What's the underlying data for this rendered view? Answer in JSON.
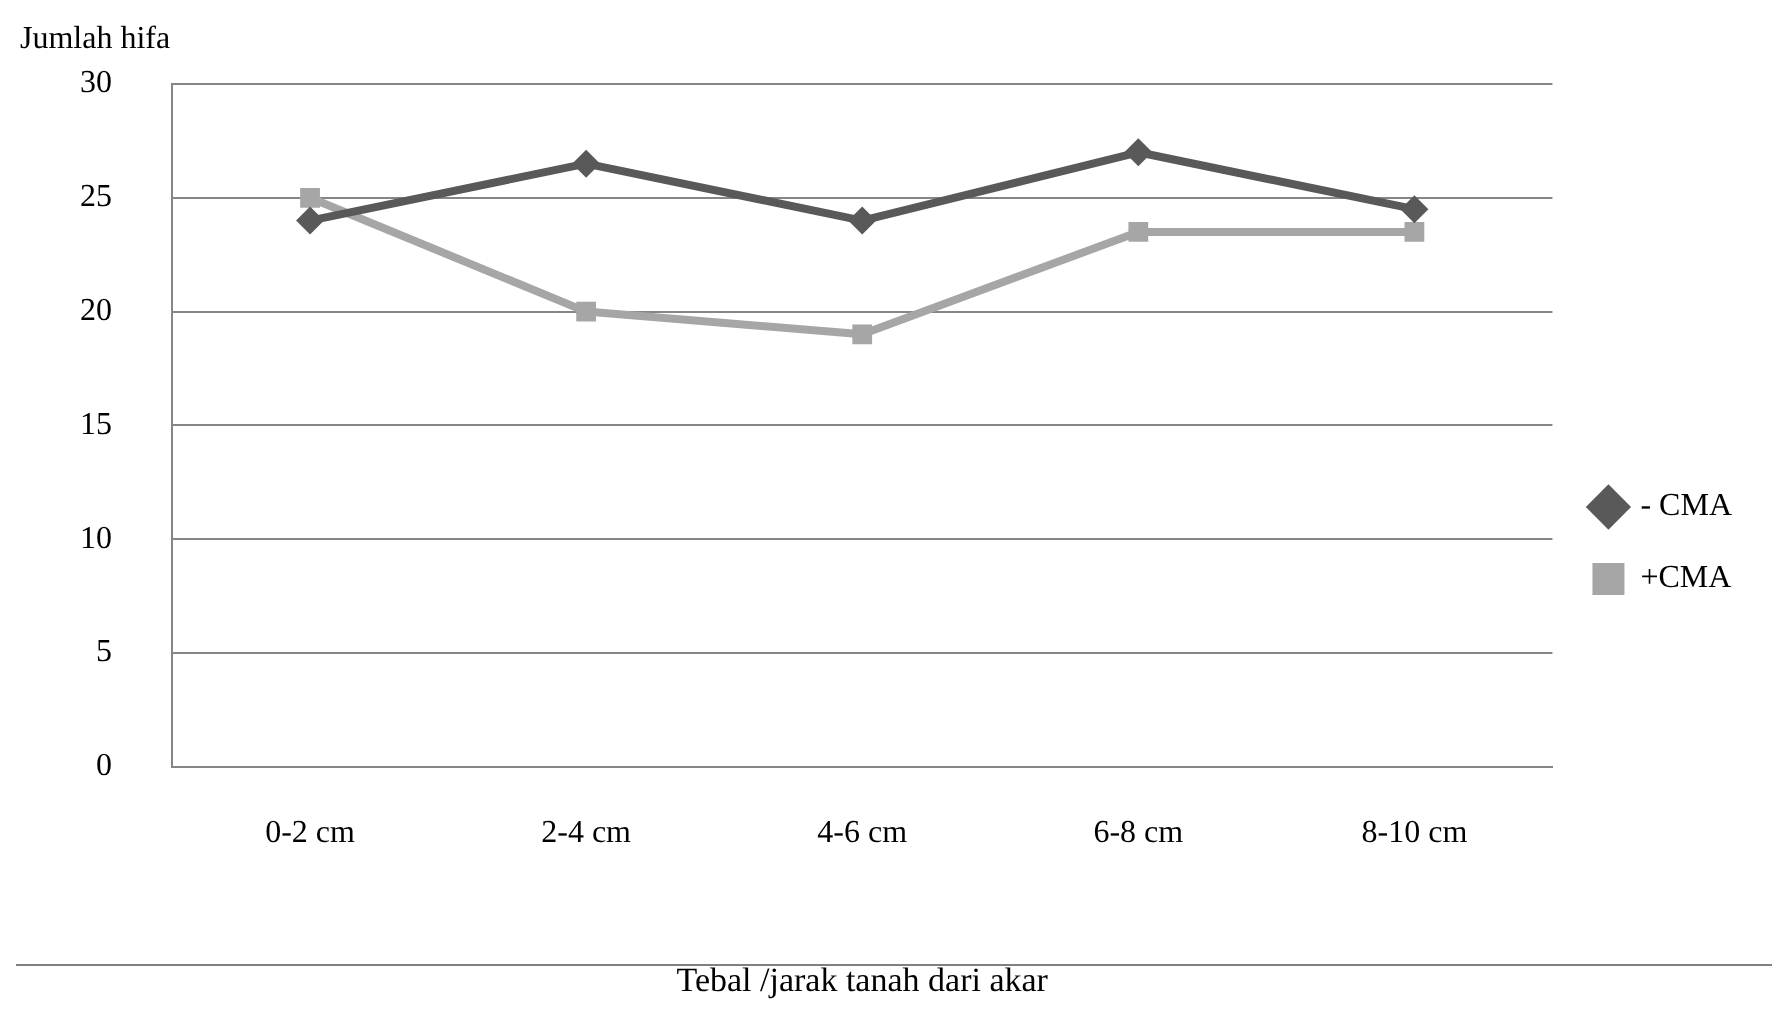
{
  "chart_data": {
    "type": "line",
    "xlabel": "Tebal /jarak tanah dari akar",
    "ylabel": "Jumlah hifa",
    "categories": [
      "0-2 cm",
      "2-4 cm",
      "4-6 cm",
      "6-8 cm",
      "8-10 cm"
    ],
    "series": [
      {
        "name": "- CMA",
        "color": "#595959",
        "marker": "diamond",
        "values": [
          24,
          26.5,
          24,
          27,
          24.5
        ]
      },
      {
        "name": "+CMA",
        "color": "#a6a6a6",
        "marker": "square",
        "values": [
          25,
          20,
          19,
          23.5,
          23.5
        ]
      }
    ],
    "ylim": [
      0,
      30
    ],
    "yticks": [
      0,
      5,
      10,
      15,
      20,
      25,
      30
    ],
    "grid": "y",
    "legend": "right",
    "line_style": "solid"
  }
}
